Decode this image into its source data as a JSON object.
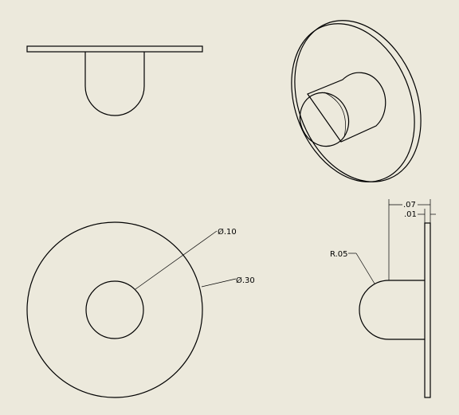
{
  "sheet": {
    "background": "#ece9dc",
    "line_color": "#000000"
  },
  "views": {
    "top": {},
    "isometric": {},
    "front": {
      "inner_diameter_label": "Ø.10",
      "outer_diameter_label": "Ø.30"
    },
    "side": {
      "total_width_label": ".07",
      "plate_thickness_label": ".01",
      "radius_label": "R.05"
    }
  }
}
